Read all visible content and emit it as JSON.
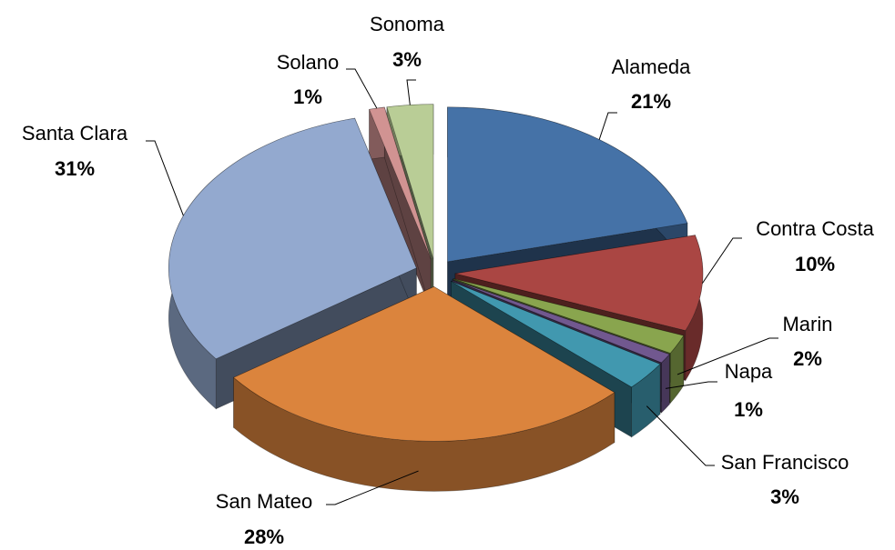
{
  "chart_data": {
    "type": "pie",
    "categories": [
      "Alameda",
      "Contra Costa",
      "Marin",
      "Napa",
      "San Francisco",
      "San Mateo",
      "Santa Clara",
      "Solano",
      "Sonoma"
    ],
    "values": [
      21,
      10,
      2,
      1,
      3,
      28,
      31,
      1,
      3
    ],
    "value_labels": [
      "21%",
      "10%",
      "2%",
      "1%",
      "3%",
      "28%",
      "31%",
      "1%",
      "3%"
    ],
    "colors": [
      "#4572a7",
      "#aa4643",
      "#89a54e",
      "#71588f",
      "#4198af",
      "#db843d",
      "#93a9cf",
      "#d19392",
      "#b9cd96"
    ]
  }
}
